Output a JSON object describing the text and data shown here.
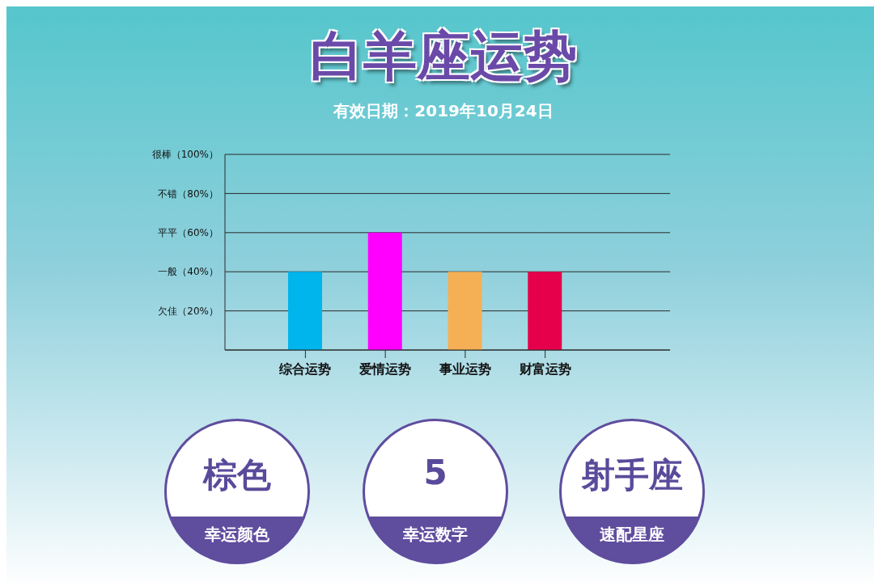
{
  "chart_data": [
    {
      "type": "bar",
      "title": "白羊座运势",
      "subtitle": "有效日期：2019年10月24日",
      "categories": [
        "综合运势",
        "爱情运势",
        "事业运势",
        "财富运势"
      ],
      "values": [
        40,
        60,
        40,
        40
      ],
      "colors": [
        "#00b4ec",
        "#ff00ff",
        "#f5b056",
        "#e6004c"
      ],
      "ylim": [
        0,
        100
      ],
      "yticks": [
        {
          "value": 20,
          "label": "欠佳（20%）"
        },
        {
          "value": 40,
          "label": "一般（40%）"
        },
        {
          "value": 60,
          "label": "平平（60%）"
        },
        {
          "value": 80,
          "label": "不错（80%）"
        },
        {
          "value": 100,
          "label": "很棒（100%）"
        }
      ],
      "grid": "y",
      "legend": false
    },
    {
      "type": "other",
      "annotations": [
        "棕色",
        "幸运颜色",
        "5",
        "幸运数字",
        "射手座",
        "速配星座"
      ]
    }
  ]
}
